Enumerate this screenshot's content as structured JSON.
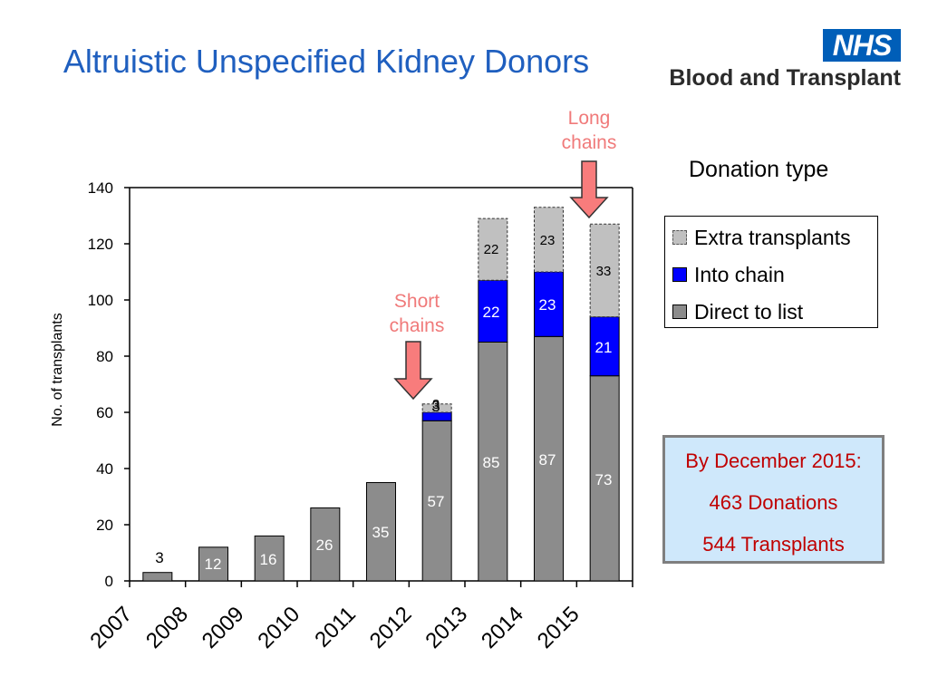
{
  "title": "Altruistic Unspecified Kidney Donors",
  "logo": {
    "nhs": "NHS",
    "org": "Blood and Transplant"
  },
  "annotations": {
    "long_chains": {
      "line1": "Long",
      "line2": "chains"
    },
    "short_chains": {
      "line1": "Short",
      "line2": "chains"
    }
  },
  "legend": {
    "title": "Donation type",
    "items": [
      {
        "label": "Extra transplants",
        "color": "#c0c0c0"
      },
      {
        "label": "Into chain",
        "color": "#0000ff"
      },
      {
        "label": "Direct to list",
        "color": "#8c8c8c"
      }
    ]
  },
  "summary": {
    "heading": "By December 2015:",
    "donations": "463 Donations",
    "transplants": "544 Transplants"
  },
  "chart_data": {
    "type": "bar",
    "stacked": true,
    "categories": [
      "2007",
      "2008",
      "2009",
      "2010",
      "2011",
      "2012",
      "2013",
      "2014",
      "2015"
    ],
    "series": [
      {
        "name": "Direct to list",
        "color": "#8c8c8c",
        "label_color": "#ffffff",
        "values": [
          3,
          12,
          16,
          26,
          35,
          57,
          85,
          87,
          73
        ]
      },
      {
        "name": "Into chain",
        "color": "#0000ff",
        "label_color": "#ffffff",
        "values": [
          0,
          0,
          0,
          0,
          0,
          3,
          22,
          23,
          21
        ]
      },
      {
        "name": "Extra transplants",
        "color": "#c0c0c0",
        "label_color": "#000000",
        "values": [
          0,
          0,
          0,
          0,
          0,
          3,
          22,
          23,
          33
        ]
      }
    ],
    "ylabel": "No. of transplants",
    "xlabel": "",
    "ylim": [
      0,
      140
    ],
    "yticks": [
      0,
      20,
      40,
      60,
      80,
      100,
      120,
      140
    ],
    "grid": false,
    "legend_position": "right"
  }
}
